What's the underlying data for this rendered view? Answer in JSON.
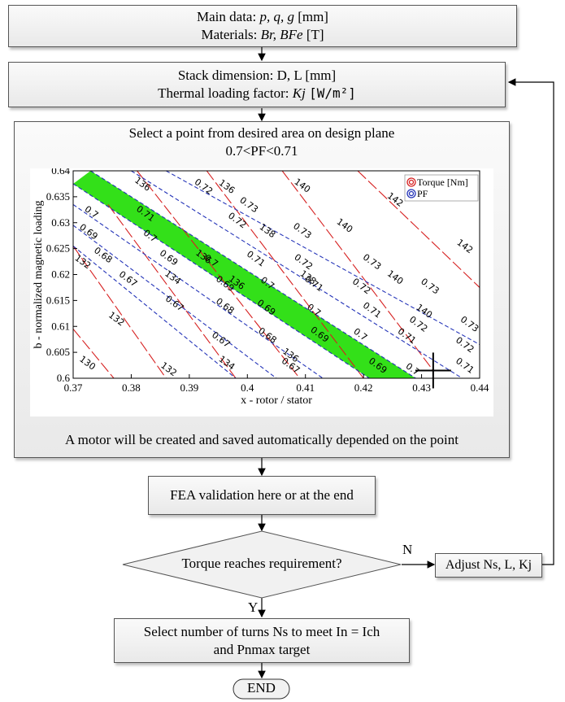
{
  "box1": {
    "line1_prefix": "Main data: ",
    "line1_vars": "p, q, g",
    "line1_unit": " [mm]",
    "line2_prefix": "Materials: ",
    "line2_vars": "Br, BFe",
    "line2_unit": " [T]"
  },
  "box2": {
    "line1": "Stack dimension: D, L [mm]",
    "line2_prefix": "Thermal loading factor: ",
    "line2_var": "Kj",
    "line2_unit": "[W/m²]"
  },
  "box3": {
    "title1": "Select a point from desired area on design plane",
    "title2": "0.7<PF<0.71",
    "footer": "A motor will be created and saved automatically depended on the point"
  },
  "box4": {
    "label": "FEA validation here or at the end"
  },
  "decision": {
    "label": "Torque reaches requirement?",
    "no": "N",
    "yes": "Y"
  },
  "adjust": {
    "label": "Adjust Ns, L, Kj"
  },
  "box5": {
    "line1": "Select number of turns Ns to meet In = Ich",
    "line2": "and Pnmax target"
  },
  "end": {
    "label": "END"
  },
  "colors": {
    "torque": "#d62020",
    "pf": "#2333b8",
    "band": "#33e019",
    "cross": "#000000"
  },
  "chart_data": {
    "type": "contour",
    "xlabel": "x - rotor / stator",
    "ylabel": "b - normalized magnetic loading",
    "xlim": [
      0.37,
      0.44
    ],
    "ylim": [
      0.6,
      0.64
    ],
    "xticks": [
      "0.37",
      "0.38",
      "0.39",
      "0.4",
      "0.41",
      "0.42",
      "0.43",
      "0.44"
    ],
    "yticks": [
      "0.6",
      "0.605",
      "0.61",
      "0.615",
      "0.62",
      "0.625",
      "0.63",
      "0.635",
      "0.64"
    ],
    "legend": [
      "Torque [Nm]",
      "PF"
    ],
    "legend_position": "top-right",
    "highlighted_band": {
      "pf_min": 0.7,
      "pf_max": 0.71
    },
    "selected_point": {
      "x": 0.432,
      "y": 0.6015
    },
    "torque_contours": [
      {
        "level": 130,
        "points": [
          [
            0.37,
            0.6095
          ],
          [
            0.377,
            0.6
          ]
        ]
      },
      {
        "level": 132,
        "points": [
          [
            0.37,
            0.6255
          ],
          [
            0.386,
            0.6
          ]
        ]
      },
      {
        "level": 134,
        "points": [
          [
            0.376,
            0.6335
          ],
          [
            0.398,
            0.6
          ]
        ]
      },
      {
        "level": 136,
        "points": [
          [
            0.381,
            0.64
          ],
          [
            0.409,
            0.6
          ]
        ]
      },
      {
        "level": 138,
        "points": [
          [
            0.393,
            0.64
          ],
          [
            0.42,
            0.6
          ]
        ]
      },
      {
        "level": 140,
        "points": [
          [
            0.406,
            0.64
          ],
          [
            0.432,
            0.6015
          ]
        ]
      },
      {
        "level": 142,
        "points": [
          [
            0.419,
            0.64
          ],
          [
            0.44,
            0.6175
          ]
        ]
      }
    ],
    "pf_contours": [
      {
        "level": 0.67,
        "points": [
          [
            0.37,
            0.6255
          ],
          [
            0.398,
            0.6
          ]
        ]
      },
      {
        "level": 0.68,
        "points": [
          [
            0.37,
            0.6295
          ],
          [
            0.405,
            0.6
          ]
        ]
      },
      {
        "level": 0.69,
        "points": [
          [
            0.37,
            0.6335
          ],
          [
            0.413,
            0.6
          ]
        ]
      },
      {
        "level": 0.7,
        "points": [
          [
            0.37,
            0.6375
          ],
          [
            0.421,
            0.6
          ]
        ]
      },
      {
        "level": 0.71,
        "points": [
          [
            0.373,
            0.64
          ],
          [
            0.429,
            0.6
          ]
        ]
      },
      {
        "level": 0.72,
        "points": [
          [
            0.38,
            0.64
          ],
          [
            0.437,
            0.6
          ]
        ]
      },
      {
        "level": 0.73,
        "points": [
          [
            0.386,
            0.64
          ],
          [
            0.44,
            0.6065
          ]
        ]
      }
    ],
    "torque_labels": [
      {
        "text": "130",
        "x": 0.3725,
        "y": 0.603
      },
      {
        "text": "132",
        "x": 0.3717,
        "y": 0.6225
      },
      {
        "text": "132",
        "x": 0.3775,
        "y": 0.6115
      },
      {
        "text": "132",
        "x": 0.3865,
        "y": 0.6018
      },
      {
        "text": "134",
        "x": 0.3872,
        "y": 0.6195
      },
      {
        "text": "134",
        "x": 0.3965,
        "y": 0.603
      },
      {
        "text": "136",
        "x": 0.382,
        "y": 0.6375
      },
      {
        "text": "136",
        "x": 0.3925,
        "y": 0.6235
      },
      {
        "text": "136",
        "x": 0.3982,
        "y": 0.6185
      },
      {
        "text": "136",
        "x": 0.4075,
        "y": 0.6045
      },
      {
        "text": "136",
        "x": 0.3965,
        "y": 0.637
      },
      {
        "text": "138",
        "x": 0.4035,
        "y": 0.6285
      },
      {
        "text": "138",
        "x": 0.4105,
        "y": 0.6195
      },
      {
        "text": "140",
        "x": 0.4095,
        "y": 0.6372
      },
      {
        "text": "140",
        "x": 0.4168,
        "y": 0.6295
      },
      {
        "text": "140",
        "x": 0.4255,
        "y": 0.6195
      },
      {
        "text": "140",
        "x": 0.4305,
        "y": 0.613
      },
      {
        "text": "142",
        "x": 0.4255,
        "y": 0.6345
      },
      {
        "text": "142",
        "x": 0.4375,
        "y": 0.6255
      }
    ],
    "pf_labels": [
      {
        "text": "0.7",
        "x": 0.3732,
        "y": 0.6321
      },
      {
        "text": "0.71",
        "x": 0.3825,
        "y": 0.6318
      },
      {
        "text": "0.72",
        "x": 0.3925,
        "y": 0.637
      },
      {
        "text": "0.73",
        "x": 0.4003,
        "y": 0.6335
      },
      {
        "text": "0.69",
        "x": 0.3727,
        "y": 0.6283
      },
      {
        "text": "0.7",
        "x": 0.3833,
        "y": 0.6275
      },
      {
        "text": "0.72",
        "x": 0.3983,
        "y": 0.6305
      },
      {
        "text": "0.73",
        "x": 0.4095,
        "y": 0.6285
      },
      {
        "text": "0.68",
        "x": 0.3752,
        "y": 0.6238
      },
      {
        "text": "0.69",
        "x": 0.3865,
        "y": 0.6233
      },
      {
        "text": "0.7",
        "x": 0.3938,
        "y": 0.6227
      },
      {
        "text": "0.71",
        "x": 0.4015,
        "y": 0.6231
      },
      {
        "text": "0.72",
        "x": 0.4097,
        "y": 0.6225
      },
      {
        "text": "0.73",
        "x": 0.4215,
        "y": 0.6225
      },
      {
        "text": "0.67",
        "x": 0.3795,
        "y": 0.6192
      },
      {
        "text": "0.69",
        "x": 0.3962,
        "y": 0.6183
      },
      {
        "text": "0.7",
        "x": 0.4035,
        "y": 0.6184
      },
      {
        "text": "0.71",
        "x": 0.4115,
        "y": 0.6183
      },
      {
        "text": "0.72",
        "x": 0.4197,
        "y": 0.6178
      },
      {
        "text": "0.73",
        "x": 0.4315,
        "y": 0.6178
      },
      {
        "text": "0.67",
        "x": 0.3875,
        "y": 0.6145
      },
      {
        "text": "0.68",
        "x": 0.3962,
        "y": 0.614
      },
      {
        "text": "0.69",
        "x": 0.4033,
        "y": 0.6137
      },
      {
        "text": "0.7",
        "x": 0.4115,
        "y": 0.6132
      },
      {
        "text": "0.71",
        "x": 0.4215,
        "y": 0.6132
      },
      {
        "text": "0.72",
        "x": 0.4295,
        "y": 0.6105
      },
      {
        "text": "0.73",
        "x": 0.4383,
        "y": 0.6105
      },
      {
        "text": "0.67",
        "x": 0.3955,
        "y": 0.6075
      },
      {
        "text": "0.68",
        "x": 0.4035,
        "y": 0.6083
      },
      {
        "text": "0.69",
        "x": 0.4125,
        "y": 0.6085
      },
      {
        "text": "0.7",
        "x": 0.4195,
        "y": 0.6085
      },
      {
        "text": "0.71",
        "x": 0.4275,
        "y": 0.6082
      },
      {
        "text": "0.67",
        "x": 0.4075,
        "y": 0.6025
      },
      {
        "text": "0.69",
        "x": 0.4225,
        "y": 0.6025
      },
      {
        "text": "0.7",
        "x": 0.4285,
        "y": 0.6018
      },
      {
        "text": "0.71",
        "x": 0.4375,
        "y": 0.6025
      },
      {
        "text": "0.72",
        "x": 0.4375,
        "y": 0.6065
      }
    ]
  }
}
